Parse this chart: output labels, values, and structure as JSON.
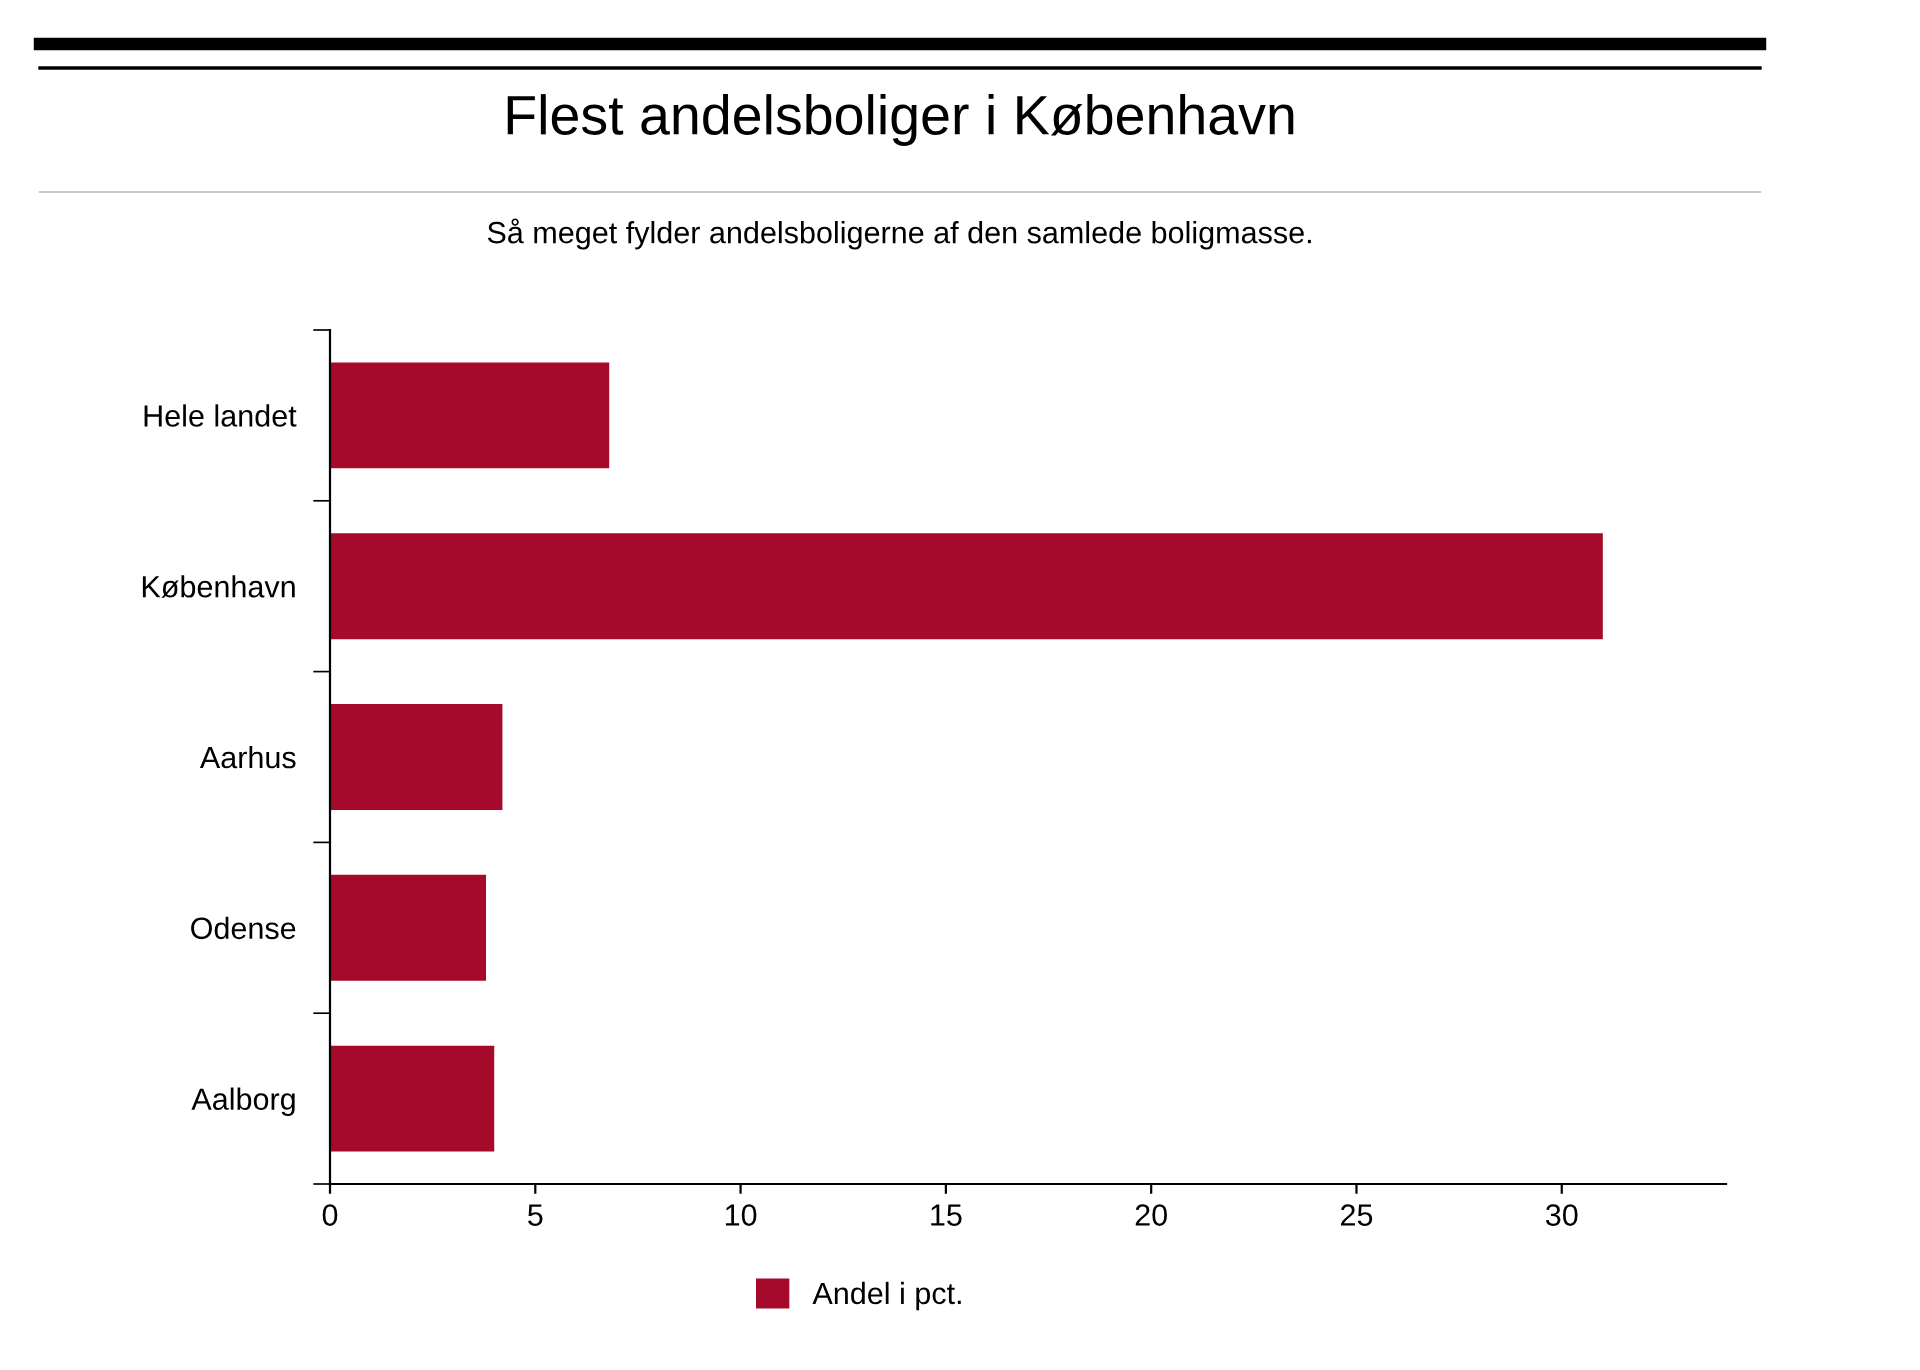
{
  "chart_data": {
    "type": "bar",
    "orientation": "horizontal",
    "title": "Flest andelsboliger i København",
    "subtitle": "Så meget fylder andelsboligerne af den samlede boligmasse.",
    "categories": [
      "Hele landet",
      "København",
      "Aarhus",
      "Odense",
      "Aalborg"
    ],
    "series": [
      {
        "name": "Andel i pct.",
        "color": "#a50a2b",
        "values": [
          6.8,
          31.0,
          4.2,
          3.8,
          4.0
        ]
      }
    ],
    "xlim": [
      0,
      34
    ],
    "xticks": [
      0,
      5,
      10,
      15,
      20,
      25,
      30
    ],
    "grid": false,
    "legend": "bottom"
  }
}
